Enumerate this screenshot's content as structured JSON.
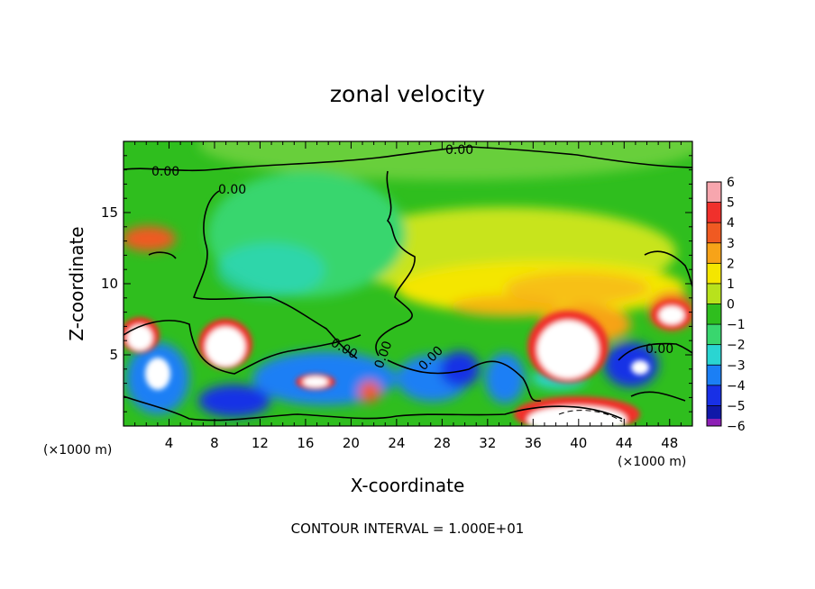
{
  "chart_data": {
    "type": "heatmap",
    "title": "zonal velocity",
    "xlabel": "X-coordinate",
    "ylabel": "Z-coordinate",
    "x_unit_label": "(×1000 m)",
    "xlim": [
      0,
      50
    ],
    "ylim": [
      0,
      20
    ],
    "x_ticks": [
      4,
      8,
      12,
      16,
      20,
      24,
      28,
      32,
      36,
      40,
      44,
      48
    ],
    "y_ticks": [
      5,
      10,
      15
    ],
    "colorbar": {
      "levels": [
        6,
        5,
        4,
        3,
        2,
        1,
        0,
        -1,
        -2,
        -3,
        -4,
        -5,
        -6
      ],
      "colors": [
        "#f7a6ae",
        "#f0302c",
        "#f05a22",
        "#f7a318",
        "#f4e600",
        "#b8e21c",
        "#2fbe1e",
        "#39d66e",
        "#2ad5d2",
        "#1b7ff5",
        "#1830e6",
        "#1018a8",
        "#8d1fb5"
      ]
    },
    "contour_labels": [
      "0.00",
      "0.00",
      "0.00",
      "0.00",
      "0.00",
      "0.00",
      "0.00"
    ],
    "annotation": "CONTOUR INTERVAL = 1.000E+01",
    "grid": false
  }
}
